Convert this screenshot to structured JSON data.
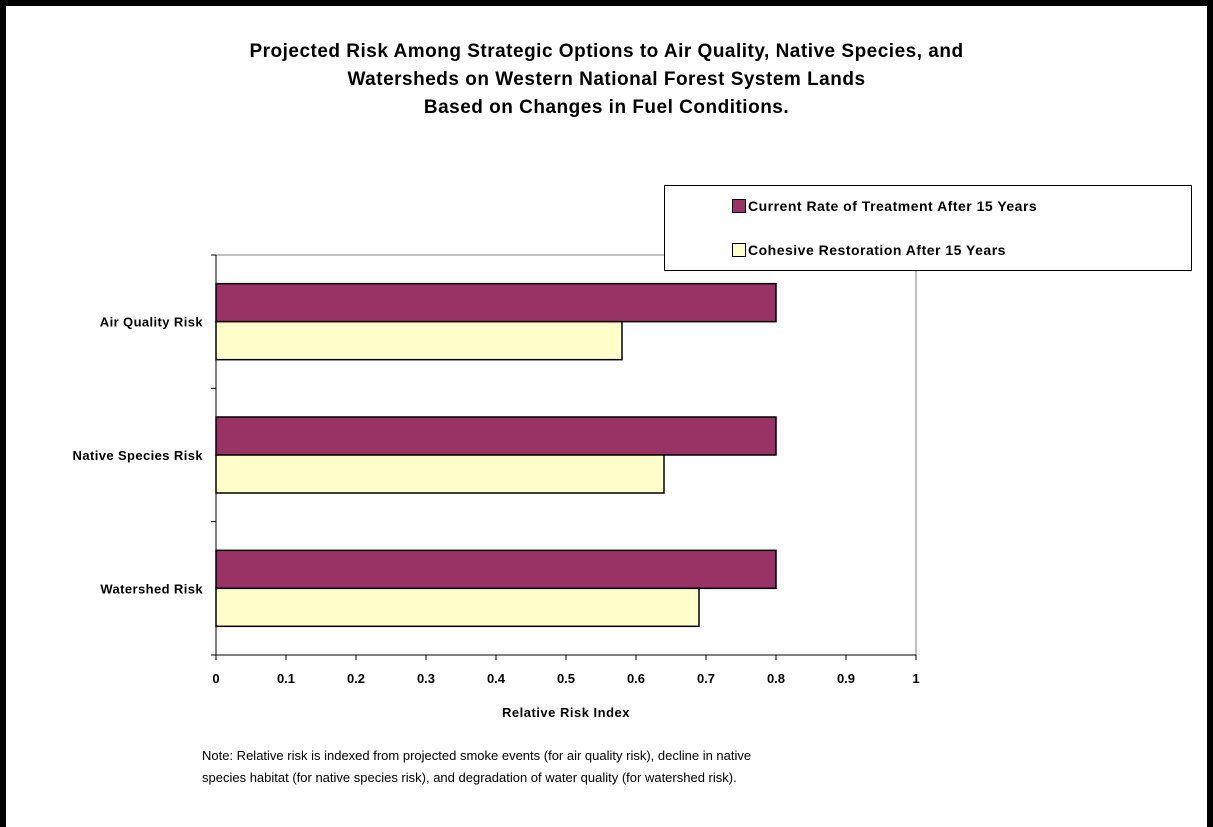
{
  "title_lines": [
    "Projected Risk Among Strategic Options to Air Quality, Native Species, and",
    "Watersheds on Western National Forest System Lands",
    "Based on Changes in Fuel Conditions."
  ],
  "note_lines": [
    "Note:  Relative risk is indexed from projected smoke events (for air quality risk), decline in native",
    "species habitat (for native species risk), and degradation of water quality (for watershed risk)."
  ],
  "colors": {
    "current": "#993366",
    "cohesive": "#FFFFCC",
    "axis": "#808080"
  },
  "chart_data": {
    "type": "bar",
    "orientation": "horizontal",
    "categories": [
      "Air Quality Risk",
      "Native Species Risk",
      "Watershed Risk"
    ],
    "series": [
      {
        "name": "Current Rate of Treatment After 15 Years",
        "values": [
          0.8,
          0.8,
          0.8
        ]
      },
      {
        "name": "Cohesive Restoration After 15 Years",
        "values": [
          0.58,
          0.64,
          0.69
        ]
      }
    ],
    "xlabel": "Relative Risk Index",
    "ylabel": "",
    "xlim": [
      0,
      1
    ],
    "ticks": [
      "0",
      "0.1",
      "0.2",
      "0.3",
      "0.4",
      "0.5",
      "0.6",
      "0.7",
      "0.8",
      "0.9",
      "1"
    ],
    "grid": false,
    "legend_position": "top-right"
  }
}
